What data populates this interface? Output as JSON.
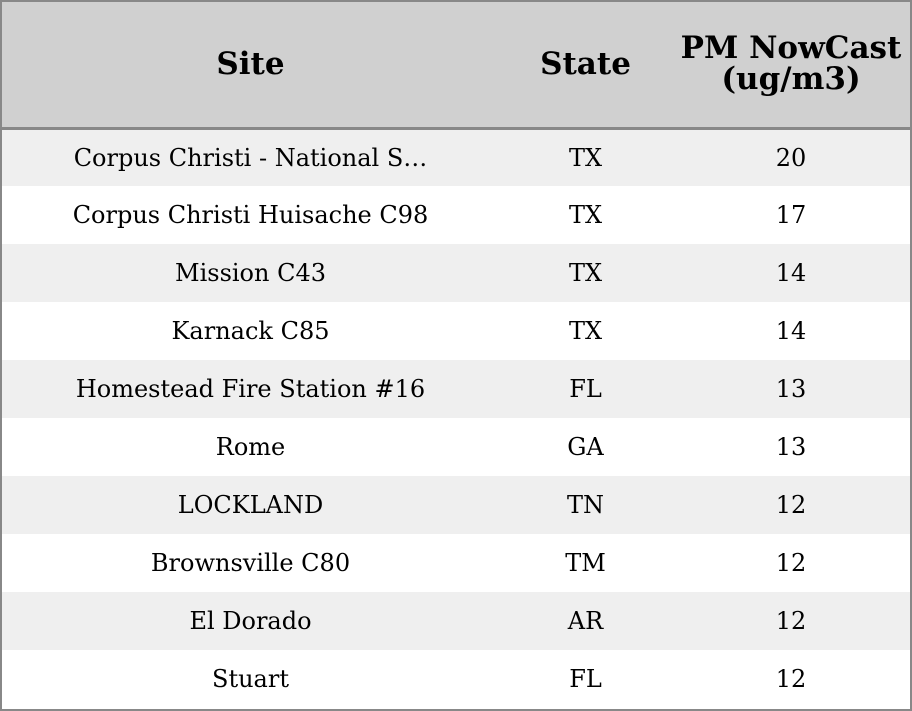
{
  "chart_data": {
    "type": "table",
    "columns": [
      "Site",
      "State",
      "PM NowCast (ug/m3)"
    ],
    "rows": [
      {
        "site": "Corpus Christi - National S…",
        "state": "TX",
        "pm": "20"
      },
      {
        "site": "Corpus Christi Huisache C98",
        "state": "TX",
        "pm": "17"
      },
      {
        "site": "Mission C43",
        "state": "TX",
        "pm": "14"
      },
      {
        "site": "Karnack C85",
        "state": "TX",
        "pm": "14"
      },
      {
        "site": "Homestead Fire Station #16",
        "state": "FL",
        "pm": "13"
      },
      {
        "site": "Rome",
        "state": "GA",
        "pm": "13"
      },
      {
        "site": "LOCKLAND",
        "state": "TN",
        "pm": "12"
      },
      {
        "site": "Brownsville C80",
        "state": "TM",
        "pm": "12"
      },
      {
        "site": "El Dorado",
        "state": "AR",
        "pm": "12"
      },
      {
        "site": "Stuart",
        "state": "FL",
        "pm": "12"
      }
    ],
    "colors": {
      "header_bg": "#d0d0d0",
      "row_alt_bg": "#efefef",
      "row_bg": "#ffffff",
      "border": "#888888"
    }
  }
}
